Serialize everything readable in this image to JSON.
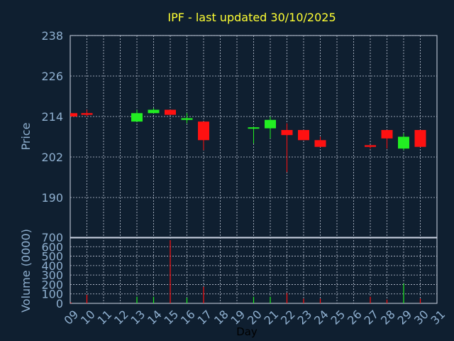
{
  "chart_data": [
    {
      "type": "candlestick",
      "title": "IPF - last updated 30/10/2025",
      "ylabel": "Price",
      "ylim": [
        178,
        238
      ],
      "yticks": [
        190,
        202,
        214,
        226,
        238
      ],
      "grid": true,
      "colors": {
        "up": "#22ee22",
        "down": "#ff1111"
      },
      "candles": [
        {
          "day": 9,
          "open": 215.0,
          "high": 215.0,
          "low": 214.0,
          "close": 214.0
        },
        {
          "day": 10,
          "open": 215.0,
          "high": 216.0,
          "low": 214.0,
          "close": 214.5
        },
        {
          "day": 13,
          "open": 212.5,
          "high": 216.0,
          "low": 212.5,
          "close": 215.0
        },
        {
          "day": 14,
          "open": 215.0,
          "high": 216.5,
          "low": 215.0,
          "close": 216.0
        },
        {
          "day": 15,
          "open": 216.0,
          "high": 216.0,
          "low": 214.5,
          "close": 214.5
        },
        {
          "day": 16,
          "open": 213.0,
          "high": 215.0,
          "low": 212.0,
          "close": 213.5
        },
        {
          "day": 17,
          "open": 212.5,
          "high": 212.5,
          "low": 204.0,
          "close": 207.0
        },
        {
          "day": 20,
          "open": 210.5,
          "high": 211.0,
          "low": 206.0,
          "close": 210.8
        },
        {
          "day": 21,
          "open": 210.5,
          "high": 214.0,
          "low": 207.5,
          "close": 213.0
        },
        {
          "day": 22,
          "open": 210.0,
          "high": 212.0,
          "low": 197.5,
          "close": 208.5
        },
        {
          "day": 23,
          "open": 210.0,
          "high": 210.0,
          "low": 207.0,
          "close": 207.0
        },
        {
          "day": 24,
          "open": 207.0,
          "high": 208.0,
          "low": 205.0,
          "close": 205.0
        },
        {
          "day": 27,
          "open": 205.5,
          "high": 205.5,
          "low": 204.5,
          "close": 205.0
        },
        {
          "day": 28,
          "open": 210.0,
          "high": 210.0,
          "low": 204.5,
          "close": 207.5
        },
        {
          "day": 29,
          "open": 204.5,
          "high": 209.0,
          "low": 204.0,
          "close": 208.0
        },
        {
          "day": 30,
          "open": 210.0,
          "high": 210.0,
          "low": 205.0,
          "close": 205.0
        }
      ]
    },
    {
      "type": "bar",
      "ylabel": "Volume (0000)",
      "xlabel": "Day",
      "ylim": [
        0,
        700
      ],
      "yticks": [
        0,
        100,
        200,
        300,
        400,
        500,
        600,
        700
      ],
      "x_ticks": [
        "09",
        "10",
        "11",
        "12",
        "13",
        "14",
        "15",
        "16",
        "17",
        "18",
        "19",
        "20",
        "21",
        "22",
        "23",
        "24",
        "25",
        "26",
        "27",
        "28",
        "29",
        "30",
        "31"
      ],
      "grid": true,
      "volumes": [
        {
          "day": 9,
          "value": 10,
          "color": "#ff1111"
        },
        {
          "day": 10,
          "value": 90,
          "color": "#ff1111"
        },
        {
          "day": 13,
          "value": 70,
          "color": "#22ee22"
        },
        {
          "day": 14,
          "value": 70,
          "color": "#22ee22"
        },
        {
          "day": 15,
          "value": 670,
          "color": "#ff1111"
        },
        {
          "day": 16,
          "value": 60,
          "color": "#22ee22"
        },
        {
          "day": 17,
          "value": 175,
          "color": "#ff1111"
        },
        {
          "day": 20,
          "value": 70,
          "color": "#22ee22"
        },
        {
          "day": 21,
          "value": 70,
          "color": "#22ee22"
        },
        {
          "day": 22,
          "value": 110,
          "color": "#ff1111"
        },
        {
          "day": 23,
          "value": 50,
          "color": "#ff1111"
        },
        {
          "day": 24,
          "value": 50,
          "color": "#ff1111"
        },
        {
          "day": 27,
          "value": 70,
          "color": "#ff1111"
        },
        {
          "day": 28,
          "value": 40,
          "color": "#ff1111"
        },
        {
          "day": 29,
          "value": 210,
          "color": "#22ee22"
        },
        {
          "day": 30,
          "value": 50,
          "color": "#ff1111"
        }
      ]
    }
  ],
  "theme": {
    "background": "#0f1f30",
    "title_color": "#ffff33",
    "axis_text_color": "#8fb0d0",
    "grid_color": "#c0c8d8",
    "xlabel_color": "#000000"
  }
}
